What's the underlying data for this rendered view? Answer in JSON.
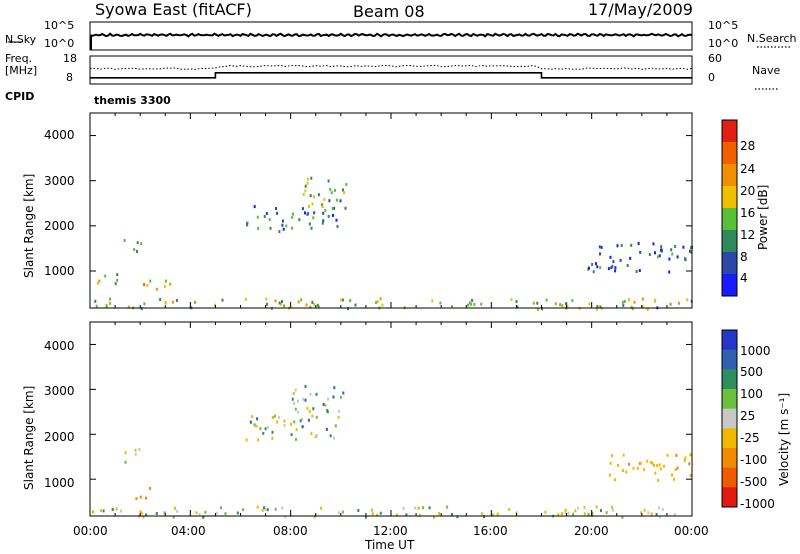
{
  "header": {
    "station": "Syowa East (fitACF)",
    "beam": "Beam 08",
    "date": "17/May/2009"
  },
  "summary_panels": {
    "nsky_label": "N.Sky",
    "nsearch_label": "N.Search",
    "freq_label_1": "Freq.",
    "freq_label_2": "[MHz]",
    "nave_label": "Nave",
    "cpid_label": "CPID",
    "cpid_value": "themis 3300",
    "noise_left_ticks": [
      "10^5",
      "10^0"
    ],
    "noise_right_ticks": [
      "10^5",
      "10^0"
    ],
    "freq_left_ticks": [
      "18",
      "8"
    ],
    "nave_right_ticks": [
      "60",
      "0"
    ]
  },
  "axes": {
    "xlabel": "Time UT",
    "ylabel": "Slant Range [km]",
    "xticks": [
      "00:00",
      "04:00",
      "08:00",
      "12:00",
      "16:00",
      "20:00",
      "00:00"
    ],
    "yticks": [
      "1000",
      "2000",
      "3000",
      "4000"
    ]
  },
  "power_scale": {
    "label": "Power [dB]",
    "ticks": [
      "4",
      "8",
      "12",
      "16",
      "20",
      "24",
      "28"
    ],
    "colors": [
      "#1a1aff",
      "#2a48a8",
      "#2e8a5a",
      "#58c038",
      "#f0c000",
      "#f09000",
      "#f06000",
      "#e02010"
    ]
  },
  "velocity_scale": {
    "label": "Velocity [m s⁻¹]",
    "ticks": [
      "1000",
      "500",
      "100",
      "25",
      "-25",
      "-100",
      "-500",
      "-1000"
    ],
    "colors": [
      "#2438c8",
      "#3060b0",
      "#2f8e5e",
      "#6cc040",
      "#c8c8c8",
      "#f0b800",
      "#f08a00",
      "#f05a00",
      "#e01a10"
    ]
  },
  "chart_data": [
    {
      "type": "line",
      "title": "Syowa East (fitACF) Beam 08 17/May/2009",
      "ylabel": "Freq. [MHz]",
      "series": [
        {
          "name": "Freq.",
          "x": [
            0.0,
            5.0,
            5.0,
            18.0,
            18.0,
            24.0
          ],
          "values": [
            10.2,
            10.2,
            12.0,
            12.0,
            10.2,
            10.2
          ]
        }
      ],
      "ylim": [
        8,
        18
      ],
      "xlabel": "Time UT"
    },
    {
      "type": "heatmap",
      "title": "Power [dB]",
      "xlabel": "Time UT",
      "ylabel": "Slant Range [km]",
      "xlim": [
        0,
        24
      ],
      "ylim": [
        180,
        4500
      ],
      "clim": [
        0,
        30
      ],
      "regions": [
        {
          "t": [
            1.2,
            2.0
          ],
          "r": [
            1400,
            1750
          ],
          "value": 10
        },
        {
          "t": [
            0.0,
            1.2
          ],
          "r": [
            700,
            1000
          ],
          "value": 14
        },
        {
          "t": [
            1.8,
            3.2
          ],
          "r": [
            600,
            900
          ],
          "value": 18
        },
        {
          "t": [
            6.2,
            10.0
          ],
          "r": [
            1900,
            2500
          ],
          "value": 8
        },
        {
          "t": [
            8.0,
            10.2
          ],
          "r": [
            2400,
            3100
          ],
          "value": 12
        },
        {
          "t": [
            19.8,
            24.0
          ],
          "r": [
            1000,
            1700
          ],
          "value": 6
        },
        {
          "t": [
            0.0,
            24.0
          ],
          "r": [
            180,
            420
          ],
          "value": 14
        }
      ]
    },
    {
      "type": "heatmap",
      "title": "Velocity [m s⁻¹]",
      "xlabel": "Time UT",
      "ylabel": "Slant Range [km]",
      "xlim": [
        0,
        24
      ],
      "ylim": [
        180,
        4500
      ],
      "clim": [
        -1000,
        1000
      ],
      "regions": [
        {
          "t": [
            1.2,
            2.0
          ],
          "r": [
            1400,
            1750
          ],
          "value": -150
        },
        {
          "t": [
            1.8,
            2.6
          ],
          "r": [
            600,
            900
          ],
          "value": -700
        },
        {
          "t": [
            6.2,
            10.0
          ],
          "r": [
            1900,
            2500
          ],
          "value": 0
        },
        {
          "t": [
            8.0,
            10.2
          ],
          "r": [
            2400,
            3100
          ],
          "value": 0
        },
        {
          "t": [
            20.5,
            24.0
          ],
          "r": [
            1000,
            1600
          ],
          "value": -400
        },
        {
          "t": [
            0.0,
            24.0
          ],
          "r": [
            180,
            420
          ],
          "value": -60
        }
      ]
    }
  ]
}
